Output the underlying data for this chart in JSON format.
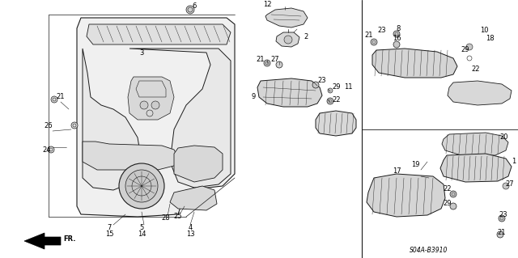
{
  "bg_color": "#ffffff",
  "outline_color": "#1a1a1a",
  "text_color": "#000000",
  "fig_width": 6.4,
  "fig_height": 3.19,
  "dpi": 100,
  "ref_code": "S04A-B3910",
  "font_size": 5.5
}
